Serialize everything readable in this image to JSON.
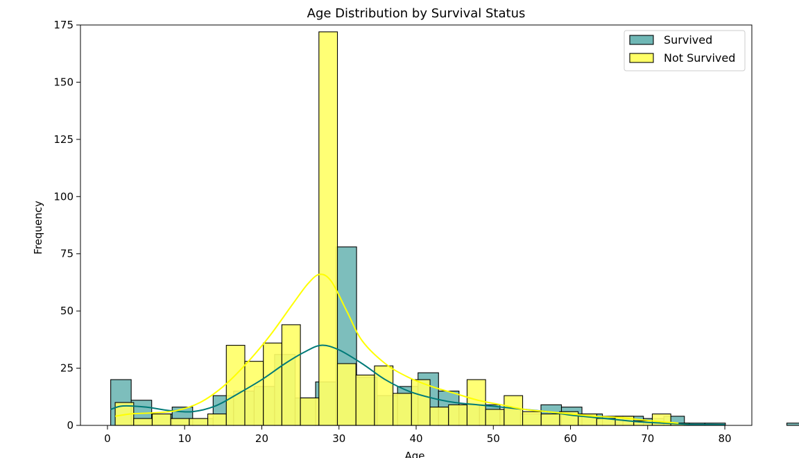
{
  "chart_data": {
    "type": "histogram",
    "title": "Age Distribution by Survival Status",
    "xlabel": "Age",
    "ylabel": "Frequency",
    "xlim": [
      -3.5,
      83.5
    ],
    "ylim": [
      0,
      175
    ],
    "xticks": [
      0,
      10,
      20,
      30,
      40,
      50,
      60,
      70,
      80
    ],
    "yticks": [
      0,
      25,
      50,
      75,
      100,
      125,
      150,
      175
    ],
    "legend": {
      "position": "top-right"
    },
    "series": [
      {
        "name": "Survived",
        "fill": "#6fb7b5",
        "kde_color": "#007a78",
        "bin_start": 0.42,
        "bin_width": 2.655,
        "counts": [
          20,
          11,
          5,
          8,
          3,
          13,
          15,
          17,
          31,
          12,
          19,
          78,
          21,
          13,
          17,
          23,
          15,
          9,
          9,
          7,
          5,
          9,
          8,
          5,
          4,
          4,
          3,
          4,
          1,
          1,
          0,
          0,
          0,
          1
        ],
        "kde": [
          [
            0.42,
            7
          ],
          [
            2,
            8.5
          ],
          [
            5,
            8
          ],
          [
            8,
            6.5
          ],
          [
            11,
            6
          ],
          [
            14,
            8.5
          ],
          [
            17,
            14
          ],
          [
            20,
            20
          ],
          [
            23,
            27
          ],
          [
            25.5,
            32
          ],
          [
            27.7,
            35
          ],
          [
            30,
            33
          ],
          [
            33,
            27
          ],
          [
            36,
            20
          ],
          [
            39,
            15
          ],
          [
            42,
            12
          ],
          [
            45,
            10
          ],
          [
            48,
            9
          ],
          [
            51,
            8
          ],
          [
            54,
            7
          ],
          [
            57,
            6
          ],
          [
            60,
            4.5
          ],
          [
            63,
            3.5
          ],
          [
            66,
            2.5
          ],
          [
            69,
            1.5
          ],
          [
            72,
            1
          ],
          [
            75,
            0.5
          ],
          [
            78,
            0.4
          ],
          [
            80,
            0.3
          ]
        ]
      },
      {
        "name": "Not Survived",
        "fill": "#ffff66",
        "kde_color": "#ffff00",
        "bin_start": 1.0,
        "bin_width": 2.4,
        "counts": [
          10,
          3,
          5,
          3,
          3,
          5,
          35,
          28,
          36,
          44,
          12,
          172,
          27,
          22,
          26,
          14,
          20,
          8,
          9,
          20,
          7,
          13,
          6,
          5,
          6,
          5,
          3,
          4,
          2,
          5,
          1
        ],
        "kde": [
          [
            1,
            4
          ],
          [
            3,
            5
          ],
          [
            6,
            5.5
          ],
          [
            9,
            6.5
          ],
          [
            12,
            10
          ],
          [
            15,
            17
          ],
          [
            18,
            27
          ],
          [
            21,
            39
          ],
          [
            24,
            53
          ],
          [
            26,
            62
          ],
          [
            27.5,
            66
          ],
          [
            29,
            63
          ],
          [
            31,
            50
          ],
          [
            33,
            37
          ],
          [
            36,
            27
          ],
          [
            39,
            21
          ],
          [
            42,
            17
          ],
          [
            45,
            14
          ],
          [
            48,
            11
          ],
          [
            51,
            9
          ],
          [
            54,
            7
          ],
          [
            57,
            6
          ],
          [
            60,
            5
          ],
          [
            63,
            4
          ],
          [
            66,
            3.5
          ],
          [
            69,
            2.5
          ],
          [
            72,
            1.5
          ],
          [
            74,
            1
          ]
        ]
      }
    ]
  }
}
